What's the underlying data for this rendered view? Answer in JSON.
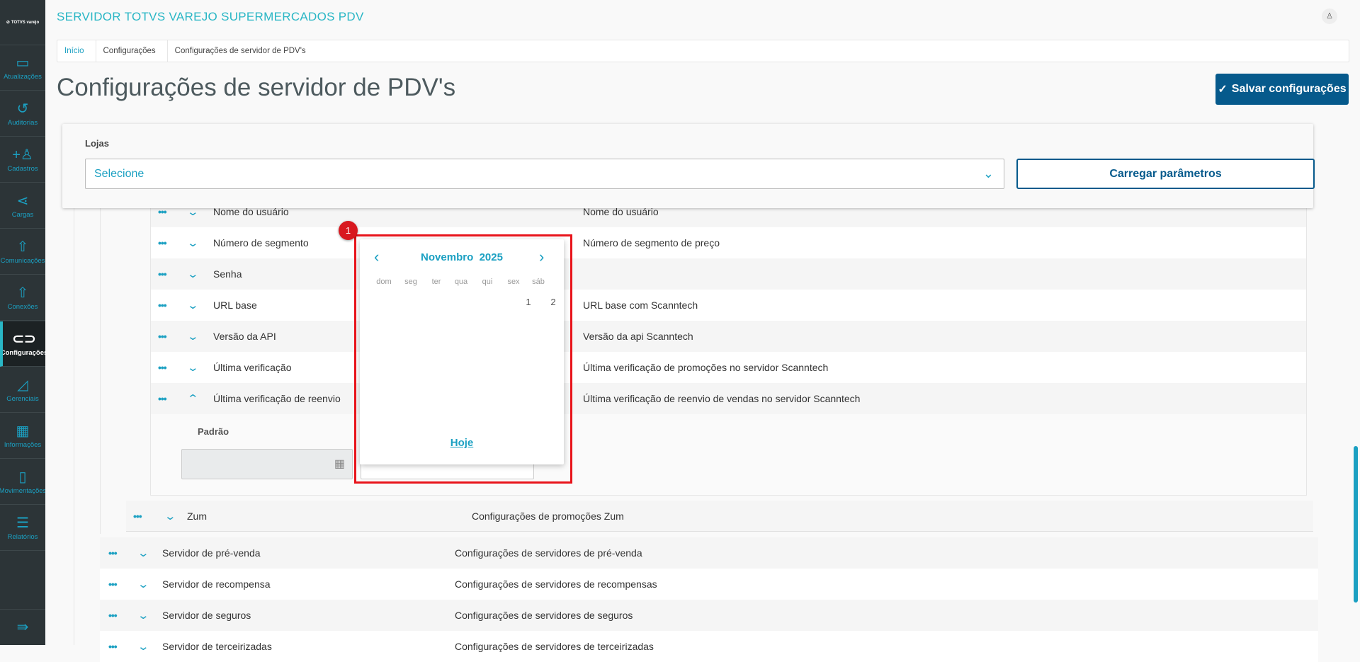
{
  "app": {
    "title": "SERVIDOR TOTVS VAREJO SUPERMERCADOS PDV",
    "logo": "TOTVS varejo"
  },
  "sidebar": {
    "items": [
      {
        "label": "Atualizações",
        "icon": "server-icon",
        "glyph": "▭"
      },
      {
        "label": "Auditorias",
        "icon": "history-icon",
        "glyph": "↺"
      },
      {
        "label": "Cadastros",
        "icon": "add-user-icon",
        "glyph": "+♙"
      },
      {
        "label": "Cargas",
        "icon": "share-icon",
        "glyph": "⋖"
      },
      {
        "label": "Comunicações",
        "icon": "upload-file-icon",
        "glyph": "⇧"
      },
      {
        "label": "Conexões",
        "icon": "upload-file-icon",
        "glyph": "⇧"
      },
      {
        "label": "Configurações",
        "icon": "link-icon",
        "glyph": "⊂⊃",
        "active": true
      },
      {
        "label": "Gerenciais",
        "icon": "chart-icon",
        "glyph": "◿"
      },
      {
        "label": "Informações",
        "icon": "building-icon",
        "glyph": "▦"
      },
      {
        "label": "Movimentações",
        "icon": "book-icon",
        "glyph": "▯"
      },
      {
        "label": "Relatórios",
        "icon": "document-icon",
        "glyph": "☰"
      }
    ],
    "collapse_glyph": "⇛"
  },
  "breadcrumb": [
    "Início",
    "Configurações",
    "Configurações de servidor de PDV's"
  ],
  "page_title": "Configurações de servidor de PDV's",
  "save_button": "Salvar configurações",
  "filter": {
    "label": "Lojas",
    "select_value": "Selecione",
    "load_button": "Carregar parâmetros"
  },
  "nested_rows": [
    {
      "label": "Nome do usuário",
      "description": "Nome do usuário"
    },
    {
      "label": "Número de segmento",
      "description": "Número de segmento de preço"
    },
    {
      "label": "Senha",
      "description": ""
    },
    {
      "label": "URL base",
      "description": "URL base com Scanntech"
    },
    {
      "label": "Versão da API",
      "description": "Versão da api Scanntech"
    },
    {
      "label": "Última verificação",
      "description": "Última verificação de promoções no servidor Scanntech"
    },
    {
      "label": "Última verificação de reenvio",
      "description": "Última verificação de reenvio de vendas no servidor Scanntech",
      "expanded": true
    }
  ],
  "expanded_field": {
    "label": "Padrão"
  },
  "group_row": {
    "label": "Zum",
    "description": "Configurações de promoções Zum"
  },
  "top_rows": [
    {
      "label": "Servidor de pré-venda",
      "description": "Configurações de servidores de pré-venda"
    },
    {
      "label": "Servidor de recompensa",
      "description": "Configurações de servidores de recompensas"
    },
    {
      "label": "Servidor de seguros",
      "description": "Configurações de servidores de seguros"
    },
    {
      "label": "Servidor de terceirizadas",
      "description": "Configurações de servidores de terceirizadas"
    }
  ],
  "calendar": {
    "month": "Novembro",
    "year": "2025",
    "weekdays": [
      "dom",
      "seg",
      "ter",
      "qua",
      "qui",
      "sex",
      "sáb"
    ],
    "days": [
      "1",
      "2"
    ],
    "today_label": "Hoje"
  },
  "annotation": {
    "badge": "1"
  },
  "colors": {
    "accent": "#1ba0c2",
    "primary": "#065a8c",
    "sidebar": "#2c3437",
    "highlight": "#e8141b"
  }
}
